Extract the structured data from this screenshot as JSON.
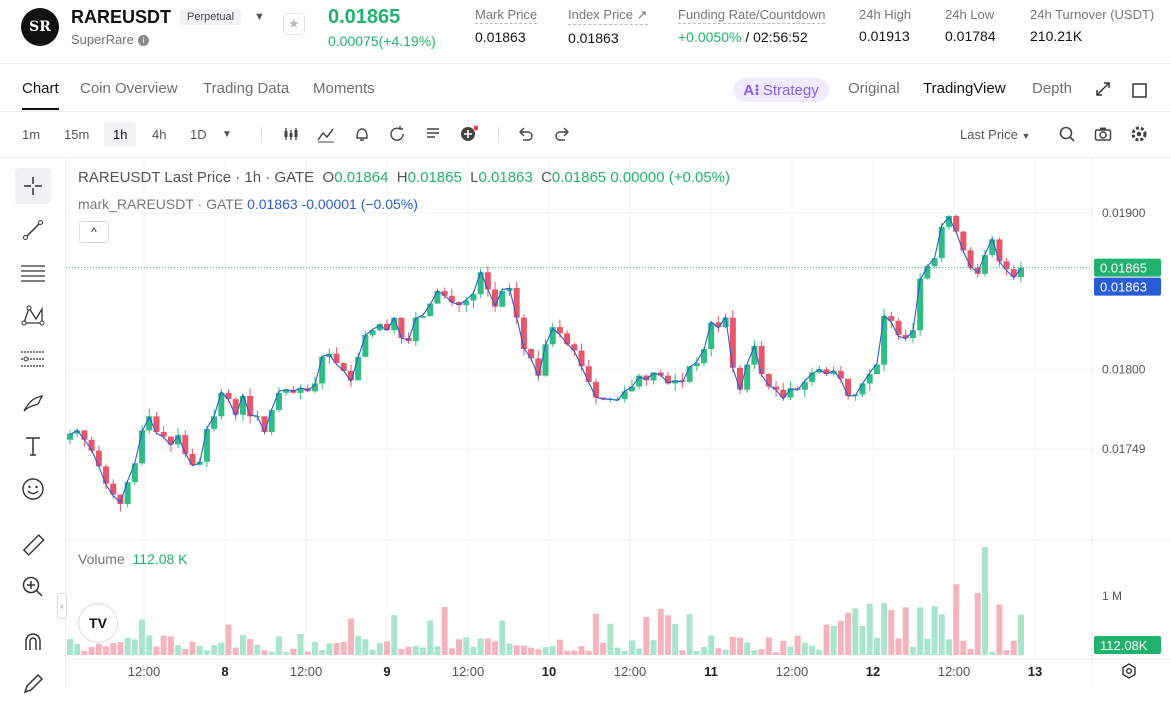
{
  "header": {
    "logo_text": "SR",
    "symbol": "RAREUSDT",
    "contract_type": "Perpetual",
    "name": "SuperRare",
    "price": "0.01865",
    "change": "0.00075(+4.19%)",
    "stats": [
      {
        "label": "Mark Price",
        "value": "0.01863"
      },
      {
        "label": "Index Price ↗",
        "value": "0.01863"
      },
      {
        "label": "Funding Rate/Countdown",
        "value_green": "+0.0050%",
        "value": " / 02:56:52"
      },
      {
        "label": "24h High",
        "value": "0.01913"
      },
      {
        "label": "24h Low",
        "value": "0.01784"
      },
      {
        "label": "24h Turnover (USDT)",
        "value": "210.21K"
      }
    ]
  },
  "tabs": [
    "Chart",
    "Coin Overview",
    "Trading Data",
    "Moments"
  ],
  "view_tabs": {
    "strategy": "Strategy",
    "original": "Original",
    "tradingview": "TradingView",
    "depth": "Depth"
  },
  "toolbar": {
    "timeframes": [
      "1m",
      "15m",
      "1h",
      "4h",
      "1D"
    ],
    "selected_timeframe": "1h",
    "price_type": "Last Price"
  },
  "legend": {
    "main": "RAREUSDT Last Price · 1h · GATE",
    "o": "0.01864",
    "h": "0.01865",
    "l": "0.01863",
    "c": "0.01865",
    "change": "0.00000 (+0.05%)",
    "mark_label": "mark_RAREUSDT · GATE",
    "mark_value": "0.01863",
    "mark_change": "-0.00001 (−0.05%)"
  },
  "volume": {
    "label": "Volume",
    "value": "112.08 K"
  },
  "chart_data": {
    "type": "candlestick",
    "title": "RAREUSDT Last Price · 1h · GATE",
    "y_ticks": [
      "0.01900",
      "0.01800",
      "0.01749"
    ],
    "y_tick_values": [
      0.019,
      0.018,
      0.01749
    ],
    "x_ticks": [
      "12:00",
      "8",
      "12:00",
      "9",
      "12:00",
      "10",
      "12:00",
      "11",
      "12:00",
      "12",
      "12:00",
      "13"
    ],
    "last_price_label": "0.01865",
    "mark_price_label": "0.01863",
    "volume_axis_label": "1 M",
    "volume_last_label": "112.08K",
    "y_range": [
      0.01691,
      0.01935
    ],
    "close_prices": [
      0.01759,
      0.01761,
      0.01755,
      0.01748,
      0.01738,
      0.01727,
      0.0172,
      0.01714,
      0.01728,
      0.0174,
      0.01761,
      0.0177,
      0.0176,
      0.01757,
      0.01752,
      0.01758,
      0.01746,
      0.01739,
      0.01741,
      0.01762,
      0.0177,
      0.01785,
      0.01781,
      0.01771,
      0.01783,
      0.0177,
      0.0177,
      0.0176,
      0.01774,
      0.01785,
      0.01787,
      0.01785,
      0.01788,
      0.01786,
      0.01791,
      0.01808,
      0.0181,
      0.01804,
      0.01799,
      0.01793,
      0.01808,
      0.01822,
      0.01825,
      0.01829,
      0.01825,
      0.01833,
      0.0182,
      0.01818,
      0.01833,
      0.01834,
      0.01842,
      0.0185,
      0.01847,
      0.01843,
      0.01841,
      0.01844,
      0.01848,
      0.01862,
      0.01851,
      0.0184,
      0.0185,
      0.01852,
      0.01833,
      0.01813,
      0.01807,
      0.01796,
      0.01816,
      0.01827,
      0.01823,
      0.01816,
      0.01812,
      0.01802,
      0.01792,
      0.01782,
      0.01781,
      0.01781,
      0.01781,
      0.01786,
      0.01789,
      0.01796,
      0.01793,
      0.01798,
      0.01796,
      0.01791,
      0.01793,
      0.01792,
      0.01802,
      0.01804,
      0.01813,
      0.0183,
      0.01827,
      0.01833,
      0.01801,
      0.01787,
      0.01803,
      0.01815,
      0.01797,
      0.01789,
      0.01787,
      0.01782,
      0.01788,
      0.01787,
      0.01792,
      0.01798,
      0.018,
      0.01797,
      0.01799,
      0.01794,
      0.01783,
      0.01784,
      0.01791,
      0.01797,
      0.01803,
      0.01834,
      0.01831,
      0.01822,
      0.0182,
      0.01825,
      0.01858,
      0.01866,
      0.01871,
      0.01891,
      0.01898,
      0.01888,
      0.01876,
      0.01865,
      0.01861,
      0.01873,
      0.01883,
      0.01869,
      0.01864,
      0.01859,
      0.01865
    ]
  },
  "drawing_tools": [
    "crosshair-icon",
    "trend-line-icon",
    "horizontal-lines-icon",
    "pattern-icon",
    "fib-icon",
    "brush-icon",
    "text-icon",
    "emoji-icon",
    "ruler-icon",
    "zoom-in-icon",
    "magnet-icon",
    "pencil-icon"
  ]
}
